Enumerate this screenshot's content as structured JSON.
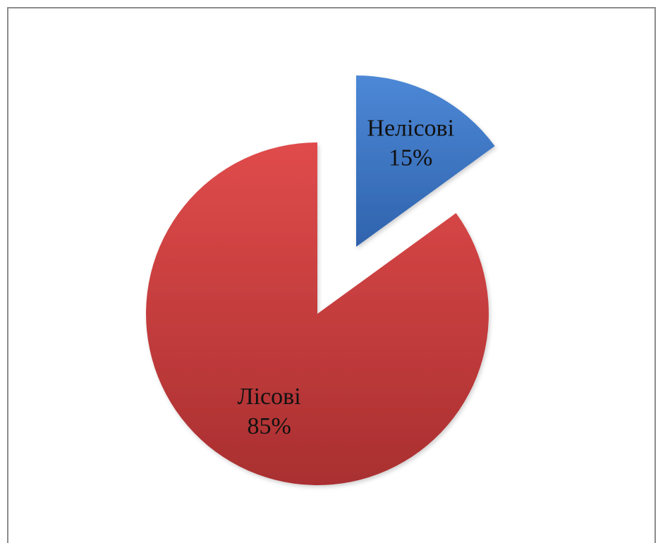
{
  "chart_data": {
    "type": "pie",
    "title": "",
    "legend": "none",
    "slices": [
      {
        "label": "Лісові",
        "value": 85,
        "percent_label": "85%",
        "color": "#c0393a"
      },
      {
        "label": "Нелісові",
        "value": 15,
        "percent_label": "15%",
        "color": "#3f77c6"
      }
    ]
  }
}
